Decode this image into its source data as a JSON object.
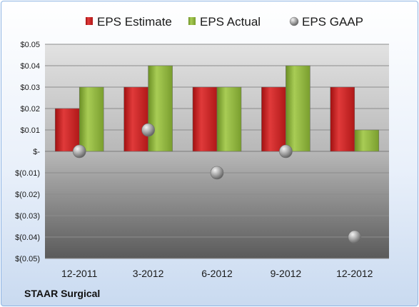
{
  "chart_data": {
    "type": "bar",
    "categories": [
      "12-2011",
      "3-2012",
      "6-2012",
      "9-2012",
      "12-2012"
    ],
    "series": [
      {
        "name": "EPS Estimate",
        "kind": "bar",
        "color": "#cc1f1f",
        "values": [
          0.02,
          0.03,
          0.03,
          0.03,
          0.03
        ]
      },
      {
        "name": "EPS Actual",
        "kind": "bar",
        "color": "#8db33a",
        "values": [
          0.03,
          0.04,
          0.03,
          0.04,
          0.01
        ]
      },
      {
        "name": "EPS GAAP",
        "kind": "marker",
        "color": "#a6a6a6",
        "values": [
          0.0,
          0.01,
          -0.01,
          0.0,
          -0.04
        ]
      }
    ],
    "ylim": [
      -0.05,
      0.05
    ],
    "yticks": [
      0.05,
      0.04,
      0.03,
      0.02,
      0.01,
      0.0,
      -0.01,
      -0.02,
      -0.03,
      -0.04,
      -0.05
    ],
    "ytick_labels": [
      "$0.05",
      "$0.04",
      "$0.03",
      "$0.02",
      "$0.01",
      "$-",
      "$(0.01)",
      "$(0.02)",
      "$(0.03)",
      "$(0.04)",
      "$(0.05)"
    ],
    "legend_position": "top",
    "grid": true,
    "footer": "STAAR Surgical"
  }
}
